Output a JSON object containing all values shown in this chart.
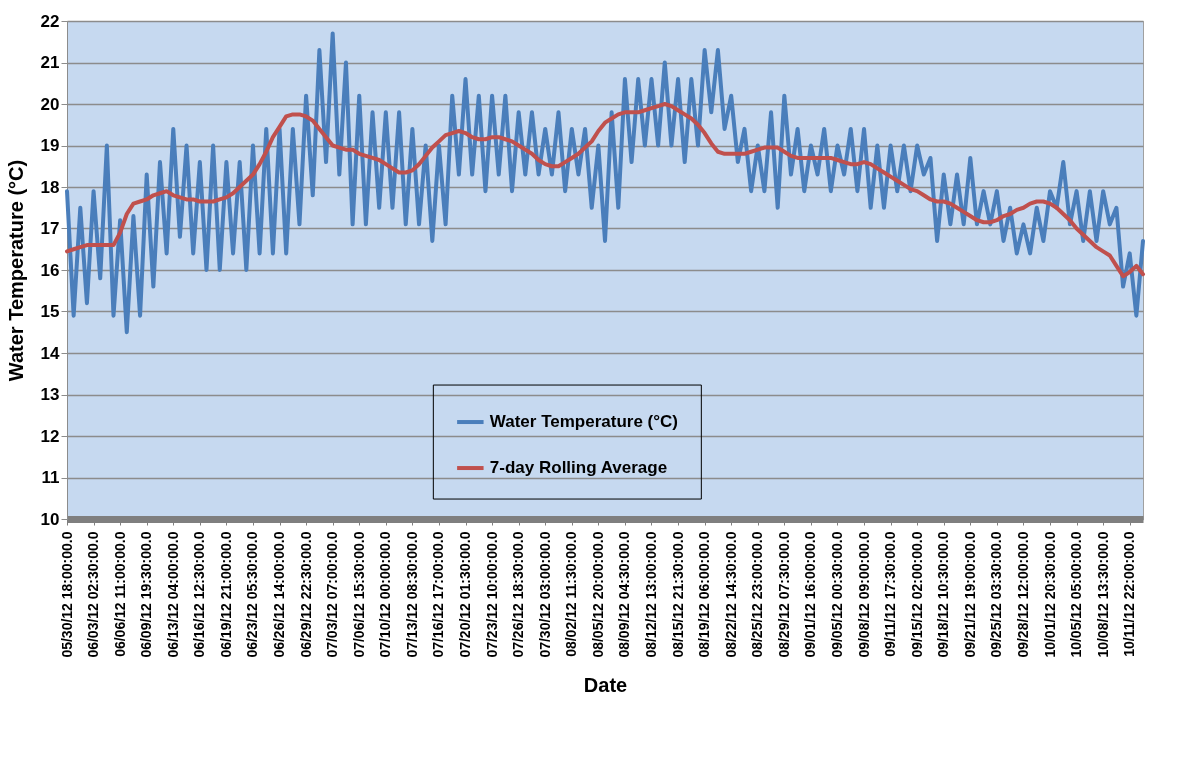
{
  "chart_data": {
    "type": "line",
    "xlabel": "Date",
    "ylabel": "Water Temperature (°C)",
    "categories": [
      "05/30/12 18:00:00.0",
      null,
      null,
      null,
      "06/03/12 02:30:00.0",
      null,
      null,
      null,
      "06/06/12 11:00:00.0",
      null,
      null,
      null,
      "06/09/12 19:30:00.0",
      null,
      null,
      null,
      "06/13/12 04:00:00.0",
      null,
      null,
      null,
      "06/16/12 12:30:00.0",
      null,
      null,
      null,
      "06/19/12 21:00:00.0",
      null,
      null,
      null,
      "06/23/12 05:30:00.0",
      null,
      null,
      null,
      "06/26/12 14:00:00.0",
      null,
      null,
      null,
      "06/29/12 22:30:00.0",
      null,
      null,
      null,
      "07/03/12 07:00:00.0",
      null,
      null,
      null,
      "07/06/12 15:30:00.0",
      null,
      null,
      null,
      "07/10/12 00:00:00.0",
      null,
      null,
      null,
      "07/13/12 08:30:00.0",
      null,
      null,
      null,
      "07/16/12 17:00:00.0",
      null,
      null,
      null,
      "07/20/12 01:30:00.0",
      null,
      null,
      null,
      "07/23/12 10:00:00.0",
      null,
      null,
      null,
      "07/26/12 18:30:00.0",
      null,
      null,
      null,
      "07/30/12 03:00:00.0",
      null,
      null,
      null,
      "08/02/12 11:30:00.0",
      null,
      null,
      null,
      "08/05/12 20:00:00.0",
      null,
      null,
      null,
      "08/09/12 04:30:00.0",
      null,
      null,
      null,
      "08/12/12 13:00:00.0",
      null,
      null,
      null,
      "08/15/12 21:30:00.0",
      null,
      null,
      null,
      "08/19/12 06:00:00.0",
      null,
      null,
      null,
      "08/22/12 14:30:00.0",
      null,
      null,
      null,
      "08/25/12 23:00:00.0",
      null,
      null,
      null,
      "08/29/12 07:30:00.0",
      null,
      null,
      null,
      "09/01/12 16:00:00.0",
      null,
      null,
      null,
      "09/05/12 00:30:00.0",
      null,
      null,
      null,
      "09/08/12 09:00:00.0",
      null,
      null,
      null,
      "09/11/12 17:30:00.0",
      null,
      null,
      null,
      "09/15/12 02:00:00.0",
      null,
      null,
      null,
      "09/18/12 10:30:00.0",
      null,
      null,
      null,
      "09/21/12 19:00:00.0",
      null,
      null,
      null,
      "09/25/12 03:30:00.0",
      null,
      null,
      null,
      "09/28/12 12:00:00.0",
      null,
      null,
      null,
      "10/01/12 20:30:00.0",
      null,
      null,
      null,
      "10/05/12 05:00:00.0",
      null,
      null,
      null,
      "10/08/12 13:30:00.0",
      null,
      null,
      null,
      "10/11/12 22:00:00.0",
      null,
      null
    ],
    "series": [
      {
        "name": "Water Temperature (°C)",
        "color": "#4a7ebb",
        "values": [
          17.9,
          14.9,
          17.5,
          15.2,
          17.9,
          15.8,
          19.0,
          14.9,
          17.2,
          14.5,
          17.3,
          14.9,
          18.3,
          15.6,
          18.6,
          16.4,
          19.4,
          16.8,
          19.0,
          16.4,
          18.6,
          16.0,
          19.0,
          16.0,
          18.6,
          16.4,
          18.6,
          16.0,
          19.0,
          16.4,
          19.4,
          16.4,
          19.4,
          16.4,
          19.4,
          17.1,
          20.2,
          17.8,
          21.3,
          18.6,
          21.7,
          18.3,
          21.0,
          17.1,
          20.2,
          17.1,
          19.8,
          17.5,
          19.8,
          17.5,
          19.8,
          17.1,
          19.4,
          17.1,
          19.0,
          16.7,
          19.0,
          17.1,
          20.2,
          18.3,
          20.6,
          18.3,
          20.2,
          17.9,
          20.2,
          18.3,
          20.2,
          17.9,
          19.8,
          18.3,
          19.8,
          18.3,
          19.4,
          18.3,
          19.8,
          17.9,
          19.4,
          18.3,
          19.4,
          17.5,
          19.0,
          16.7,
          19.8,
          17.5,
          20.6,
          18.6,
          20.6,
          19.0,
          20.6,
          19.0,
          21.0,
          19.0,
          20.6,
          18.6,
          20.6,
          19.0,
          21.3,
          19.8,
          21.3,
          19.4,
          20.2,
          18.6,
          19.4,
          17.9,
          19.0,
          17.9,
          19.8,
          17.5,
          20.2,
          18.3,
          19.4,
          17.9,
          19.0,
          18.3,
          19.4,
          17.9,
          19.0,
          18.3,
          19.4,
          17.9,
          19.4,
          17.5,
          19.0,
          17.5,
          19.0,
          17.9,
          19.0,
          17.9,
          19.0,
          18.3,
          18.7,
          16.7,
          18.3,
          17.1,
          18.3,
          17.1,
          18.7,
          17.1,
          17.9,
          17.1,
          17.9,
          16.7,
          17.5,
          16.4,
          17.1,
          16.4,
          17.5,
          16.7,
          17.9,
          17.5,
          18.6,
          17.1,
          17.9,
          16.7,
          17.9,
          16.7,
          17.9,
          17.1,
          17.5,
          15.6,
          16.4,
          14.9,
          16.7
        ]
      },
      {
        "name": "7-day Rolling Average",
        "color": "#c0504d",
        "values": [
          16.45,
          16.5,
          16.55,
          16.6,
          16.6,
          16.6,
          16.6,
          16.6,
          16.9,
          17.35,
          17.6,
          17.65,
          17.7,
          17.8,
          17.85,
          17.9,
          17.8,
          17.75,
          17.7,
          17.7,
          17.65,
          17.65,
          17.65,
          17.7,
          17.75,
          17.85,
          18.0,
          18.15,
          18.3,
          18.55,
          18.85,
          19.2,
          19.45,
          19.7,
          19.75,
          19.75,
          19.7,
          19.6,
          19.4,
          19.2,
          19.0,
          18.95,
          18.9,
          18.9,
          18.8,
          18.75,
          18.7,
          18.65,
          18.55,
          18.45,
          18.35,
          18.35,
          18.4,
          18.55,
          18.75,
          18.95,
          19.1,
          19.25,
          19.3,
          19.35,
          19.3,
          19.2,
          19.15,
          19.15,
          19.2,
          19.2,
          19.15,
          19.1,
          19.0,
          18.9,
          18.8,
          18.65,
          18.55,
          18.5,
          18.5,
          18.6,
          18.7,
          18.8,
          18.95,
          19.1,
          19.35,
          19.55,
          19.65,
          19.75,
          19.8,
          19.8,
          19.8,
          19.85,
          19.9,
          19.95,
          20.0,
          19.95,
          19.85,
          19.75,
          19.65,
          19.5,
          19.3,
          19.05,
          18.85,
          18.8,
          18.8,
          18.8,
          18.8,
          18.85,
          18.9,
          18.95,
          18.95,
          18.95,
          18.85,
          18.75,
          18.7,
          18.7,
          18.7,
          18.7,
          18.7,
          18.7,
          18.65,
          18.6,
          18.55,
          18.55,
          18.6,
          18.55,
          18.45,
          18.35,
          18.25,
          18.15,
          18.05,
          17.95,
          17.9,
          17.8,
          17.7,
          17.65,
          17.65,
          17.6,
          17.5,
          17.4,
          17.3,
          17.2,
          17.15,
          17.15,
          17.2,
          17.3,
          17.35,
          17.45,
          17.5,
          17.6,
          17.65,
          17.65,
          17.6,
          17.5,
          17.35,
          17.2,
          17.0,
          16.85,
          16.7,
          16.55,
          16.45,
          16.35,
          16.1,
          15.85,
          15.95,
          16.1,
          15.9
        ]
      }
    ],
    "ylim": [
      10,
      22
    ],
    "yticks": [
      10,
      11,
      12,
      13,
      14,
      15,
      16,
      17,
      18,
      19,
      20,
      21,
      22
    ],
    "grid": "y",
    "legend": "bottom"
  }
}
